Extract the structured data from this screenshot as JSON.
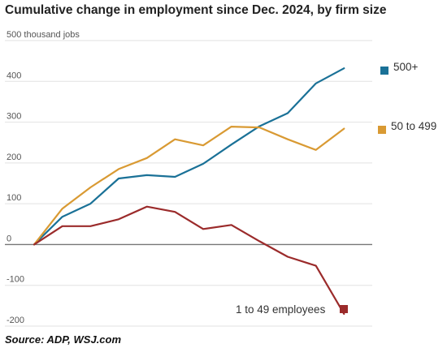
{
  "chart_data": {
    "type": "line",
    "title": "Cumulative change in employment since Dec. 2024, by firm size",
    "ylabel_unit": "thousand jobs",
    "ylim": [
      -200,
      500
    ],
    "yticks": [
      -200,
      -100,
      0,
      100,
      200,
      300,
      400,
      500
    ],
    "grid": true,
    "x_points": 13,
    "series": [
      {
        "name": "500+",
        "color": "#1a7197",
        "values": [
          0,
          68,
          100,
          162,
          170,
          166,
          198,
          245,
          290,
          322,
          395,
          432
        ]
      },
      {
        "name": "50 to 499",
        "color": "#d99a33",
        "values": [
          0,
          88,
          140,
          185,
          212,
          258,
          243,
          289,
          287,
          258,
          232,
          284
        ]
      },
      {
        "name": "1 to 49 employees",
        "color": "#9b2b2b",
        "values": [
          0,
          45,
          45,
          62,
          93,
          80,
          38,
          48,
          8,
          -30,
          -52,
          -170
        ]
      }
    ]
  },
  "source": "Source:  ADP, WSJ.com"
}
